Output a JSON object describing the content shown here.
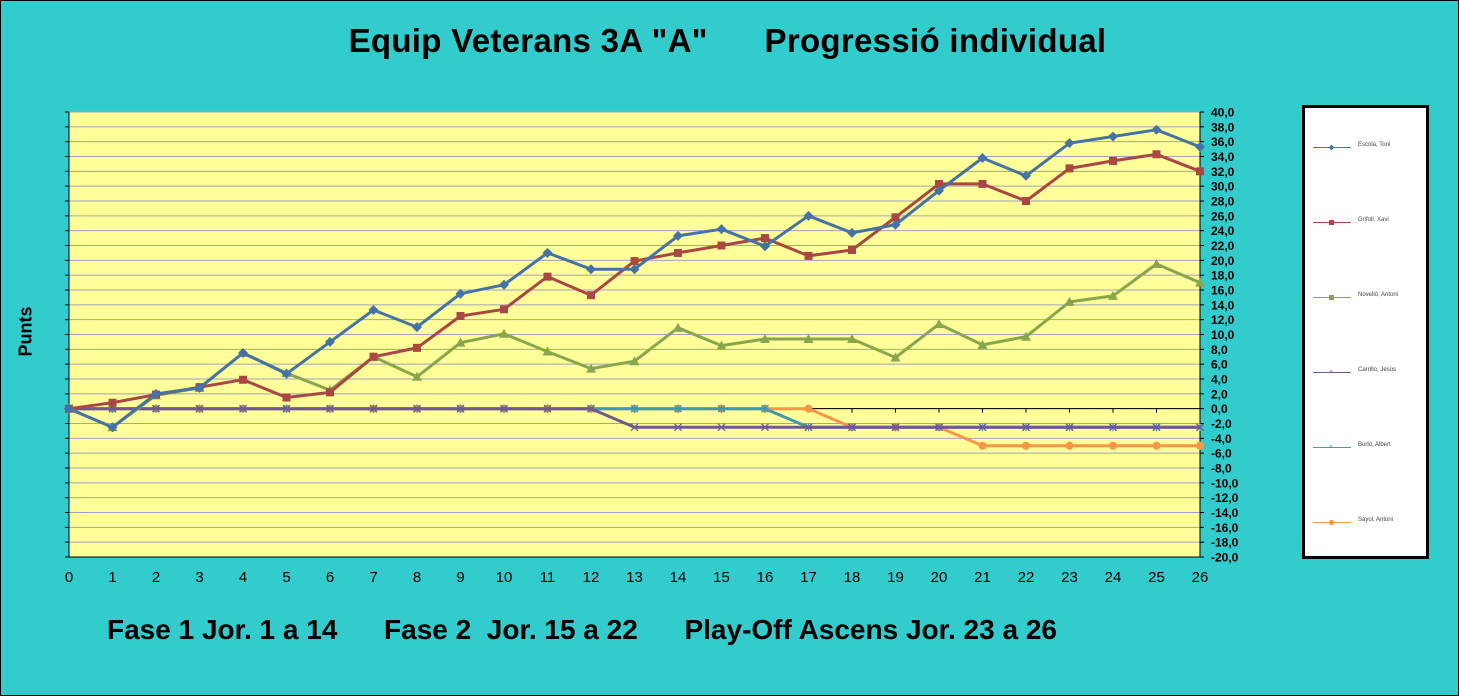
{
  "title": "Equip Veterans 3A \"A\"      Progressió individual",
  "footer": "Fase 1 Jor. 1 a 14      Fase 2  Jor. 15 a 22      Play-Off Ascens Jor. 23 a 26",
  "colors": {
    "background": "#33CCCC",
    "plot_area": "#FFFF99",
    "gridlines": "#9FA0C6"
  },
  "chart_data": {
    "type": "line",
    "title": "",
    "xlabel": "",
    "ylabel": "Punts",
    "x": [
      0,
      1,
      2,
      3,
      4,
      5,
      6,
      7,
      8,
      9,
      10,
      11,
      12,
      13,
      14,
      15,
      16,
      17,
      18,
      19,
      20,
      21,
      22,
      23,
      24,
      25,
      26
    ],
    "ylim": [
      -20,
      40
    ],
    "ytick_step": 2,
    "ytick_labels": [
      "40,0",
      "38,0",
      "36,0",
      "34,0",
      "32,0",
      "30,0",
      "28,0",
      "26,0",
      "24,0",
      "22,0",
      "20,0",
      "18,0",
      "16,0",
      "14,0",
      "12,0",
      "10,0",
      "8,0",
      "6,0",
      "4,0",
      "2,0",
      "0,0",
      "-2,0",
      "-4,0",
      "-6,0",
      "-8,0",
      "-10,0",
      "-12,0",
      "-14,0",
      "-16,0",
      "-18,0",
      "-20,0"
    ],
    "y_axis_side": "right",
    "grid": true,
    "legend_position": "right",
    "series": [
      {
        "name": "Escola, Toni",
        "color": "#4572A7",
        "marker": "diamond",
        "values": [
          0,
          -2.5,
          2,
          2.8,
          7.5,
          4.7,
          9,
          13.3,
          11,
          15.5,
          16.7,
          21,
          18.8,
          18.8,
          23.3,
          24.2,
          21.9,
          26,
          23.7,
          24.8,
          29.4,
          33.8,
          31.4,
          35.8,
          36.7,
          37.6,
          35.3
        ]
      },
      {
        "name": "Grifoll, Xavi",
        "color": "#AA4643",
        "marker": "square",
        "values": [
          0,
          0.8,
          1.9,
          2.9,
          3.9,
          1.5,
          2.2,
          7,
          8.2,
          12.5,
          13.4,
          17.8,
          15.3,
          19.9,
          21,
          22,
          23,
          20.6,
          21.4,
          25.8,
          30.3,
          30.3,
          28,
          32.4,
          33.4,
          34.3,
          32
        ]
      },
      {
        "name": "Novellò, Antoni",
        "color": "#89A54E",
        "marker": "triangle",
        "values": [
          0,
          -2.5,
          1.8,
          2.8,
          7.5,
          4.8,
          2.5,
          7,
          4.3,
          8.9,
          10.1,
          7.7,
          5.4,
          6.4,
          10.9,
          8.5,
          9.4,
          9.4,
          9.4,
          6.9,
          11.4,
          8.6,
          9.7,
          14.4,
          15.2,
          19.5,
          17
        ]
      },
      {
        "name": "Carrillo, Jesús",
        "color": "#71588F",
        "marker": "x",
        "values": [
          0,
          0,
          0,
          0,
          0,
          0,
          0,
          0,
          0,
          0,
          0,
          0,
          0,
          -2.5,
          -2.5,
          -2.5,
          -2.5,
          -2.5,
          -2.5,
          -2.5,
          -2.5,
          -2.5,
          -2.5,
          -2.5,
          -2.5,
          -2.5,
          -2.5
        ]
      },
      {
        "name": "Burló, Albert",
        "color": "#4198AF",
        "marker": "star",
        "values": [
          0,
          0,
          0,
          0,
          0,
          0,
          0,
          0,
          0,
          0,
          0,
          0,
          0,
          0,
          0,
          0,
          0,
          -2.5,
          -2.5,
          -2.5,
          -2.5,
          -2.5,
          -2.5,
          -2.5,
          -2.5,
          -2.5,
          -2.5
        ]
      },
      {
        "name": "Sayol, Antoni",
        "color": "#F79646",
        "marker": "circle",
        "values": [
          0,
          0,
          0,
          0,
          0,
          0,
          0,
          0,
          0,
          0,
          0,
          0,
          0,
          0,
          0,
          0,
          0,
          0,
          -2.5,
          -2.5,
          -2.5,
          -5,
          -5,
          -5,
          -5,
          -5,
          -5
        ]
      }
    ]
  }
}
